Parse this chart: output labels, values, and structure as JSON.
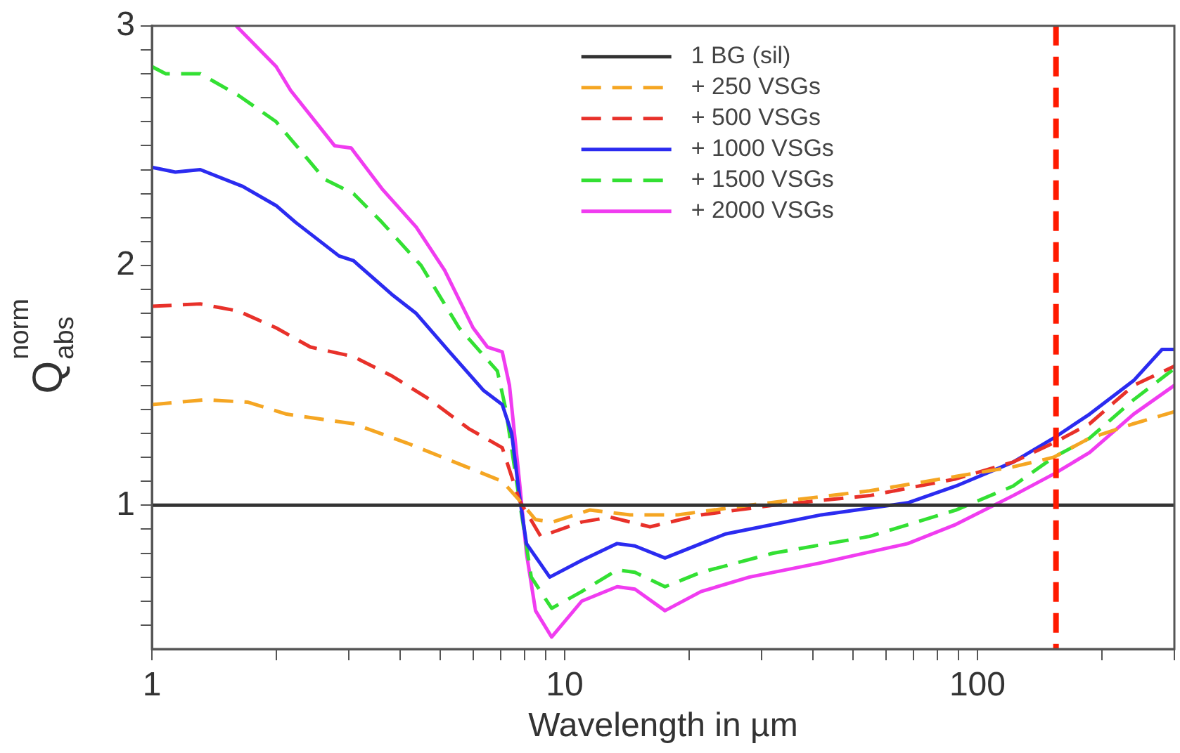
{
  "chart_data": {
    "type": "line",
    "xlabel": "Wavelength in µm",
    "ylabel": "Q$_{abs}$$^{norm}$",
    "log": "x",
    "xlim": [
      1,
      300
    ],
    "ylim": [
      0.4,
      3
    ],
    "xticks": [
      1,
      {
        "value": 2,
        "label": null
      },
      {
        "value": 3,
        "label": null
      },
      {
        "value": 4,
        "label": null
      },
      {
        "value": 5,
        "label": null
      },
      {
        "value": 6,
        "label": null
      },
      {
        "value": 7,
        "label": null
      },
      {
        "value": 8,
        "label": null
      },
      {
        "value": 9,
        "label": null
      },
      10,
      {
        "value": 20,
        "label": null
      },
      {
        "value": 30,
        "label": null
      },
      {
        "value": 40,
        "label": null
      },
      {
        "value": 50,
        "label": null
      },
      {
        "value": 60,
        "label": null
      },
      {
        "value": 70,
        "label": null
      },
      {
        "value": 80,
        "label": null
      },
      {
        "value": 90,
        "label": null
      },
      100,
      {
        "value": 200,
        "label": null
      },
      {
        "value": 300,
        "label": null
      }
    ],
    "yticks": [
      {
        "value": 0.5,
        "label": null
      },
      {
        "value": 0.6,
        "label": null
      },
      {
        "value": 0.7,
        "label": null
      },
      {
        "value": 0.8,
        "label": null
      },
      {
        "value": 0.9,
        "label": null
      },
      1,
      {
        "value": 1.1,
        "label": null
      },
      {
        "value": 1.2,
        "label": null
      },
      {
        "value": 1.3,
        "label": null
      },
      {
        "value": 1.4,
        "label": null
      },
      {
        "value": 1.5,
        "label": null
      },
      {
        "value": 1.6,
        "label": null
      },
      {
        "value": 1.7,
        "label": null
      },
      {
        "value": 1.8,
        "label": null
      },
      {
        "value": 1.9,
        "label": null
      },
      2,
      {
        "value": 2.1,
        "label": null
      },
      {
        "value": 2.2,
        "label": null
      },
      {
        "value": 2.3,
        "label": null
      },
      {
        "value": 2.4,
        "label": null
      },
      {
        "value": 2.5,
        "label": null
      },
      {
        "value": 2.6,
        "label": null
      },
      {
        "value": 2.7,
        "label": null
      },
      {
        "value": 2.8,
        "label": null
      },
      {
        "value": 2.9,
        "label": null
      },
      3
    ],
    "grid": false,
    "legend": "top",
    "marker": "none",
    "ref_lines": [
      {
        "axis": "x",
        "value": 155,
        "color": "#ff1a00",
        "line_style": "dashed"
      }
    ],
    "series": [
      {
        "name": "1 BG (sil)",
        "color": "#333333",
        "line_style": "solid",
        "x": [
          1,
          300
        ],
        "values": [
          1,
          1
        ]
      },
      {
        "name": "+ 250 VSGs",
        "color": "#f5a623",
        "line_style": "dashed",
        "x": [
          1,
          1.34,
          1.71,
          2.12,
          3.08,
          4.14,
          5.41,
          7.06,
          7.77,
          8.5,
          9.35,
          11.5,
          14.4,
          18.8,
          28,
          54.8,
          88.7,
          122,
          153,
          187,
          239,
          300
        ],
        "values": [
          1.42,
          1.44,
          1.43,
          1.38,
          1.34,
          1.26,
          1.18,
          1.1,
          1.02,
          0.94,
          0.93,
          0.98,
          0.96,
          0.96,
          1.0,
          1.06,
          1.12,
          1.16,
          1.2,
          1.28,
          1.34,
          1.39
        ]
      },
      {
        "name": "+ 500 VSGs",
        "color": "#e8312a",
        "line_style": "dashed",
        "x": [
          1,
          1.31,
          1.62,
          2.0,
          2.42,
          3.08,
          3.81,
          4.72,
          5.85,
          7.06,
          7.77,
          8.75,
          11,
          12.9,
          16.1,
          21.4,
          32,
          54.8,
          88.7,
          122,
          153,
          187,
          239,
          300
        ],
        "values": [
          1.83,
          1.84,
          1.81,
          1.74,
          1.66,
          1.62,
          1.54,
          1.44,
          1.32,
          1.24,
          1.02,
          0.87,
          0.93,
          0.95,
          0.91,
          0.96,
          1.0,
          1.04,
          1.11,
          1.18,
          1.26,
          1.34,
          1.5,
          1.58
        ]
      },
      {
        "name": "+ 1000 VSGs",
        "color": "#2b2bf0",
        "line_style": "solid",
        "x": [
          1,
          1.14,
          1.31,
          1.66,
          2.0,
          2.23,
          2.84,
          3.08,
          3.81,
          4.37,
          5.26,
          6.35,
          7.06,
          7.44,
          7.77,
          8.08,
          9.2,
          11,
          13.4,
          14.8,
          17.5,
          24.5,
          41.9,
          67.8,
          88.7,
          122,
          153,
          187,
          239,
          280,
          300
        ],
        "values": [
          2.41,
          2.39,
          2.4,
          2.33,
          2.25,
          2.18,
          2.04,
          2.02,
          1.88,
          1.8,
          1.64,
          1.48,
          1.42,
          1.3,
          1.04,
          0.84,
          0.7,
          0.77,
          0.84,
          0.83,
          0.78,
          0.88,
          0.96,
          1.01,
          1.08,
          1.18,
          1.28,
          1.38,
          1.52,
          1.65,
          1.65
        ]
      },
      {
        "name": "+ 1500 VSGs",
        "color": "#33e033",
        "line_style": "dashed",
        "x": [
          1,
          1.08,
          1.31,
          1.62,
          2.0,
          2.62,
          3.08,
          3.61,
          4.49,
          5.55,
          6.87,
          7.2,
          7.77,
          8.3,
          9.3,
          11,
          13.4,
          14.8,
          17.5,
          21.4,
          32,
          54.8,
          88.7,
          122,
          153,
          187,
          239,
          300
        ],
        "values": [
          2.83,
          2.8,
          2.8,
          2.71,
          2.6,
          2.36,
          2.3,
          2.18,
          2.0,
          1.74,
          1.56,
          1.4,
          1.02,
          0.7,
          0.57,
          0.64,
          0.73,
          0.72,
          0.66,
          0.72,
          0.8,
          0.87,
          0.98,
          1.08,
          1.2,
          1.28,
          1.44,
          1.57
        ]
      },
      {
        "name": "+ 2000 VSGs",
        "color": "#f03cf0",
        "line_style": "solid",
        "x": [
          1.6,
          2.0,
          2.17,
          2.77,
          3.04,
          3.61,
          4.37,
          5.12,
          6.0,
          6.5,
          7.06,
          7.35,
          7.77,
          8.08,
          8.5,
          9.3,
          11,
          13.4,
          14.8,
          17.5,
          21.4,
          28,
          41.9,
          67.8,
          88.7,
          122,
          153,
          187,
          239,
          300
        ],
        "values": [
          3.0,
          2.83,
          2.73,
          2.5,
          2.49,
          2.32,
          2.16,
          1.98,
          1.74,
          1.66,
          1.64,
          1.5,
          1.1,
          0.8,
          0.56,
          0.45,
          0.6,
          0.66,
          0.65,
          0.56,
          0.64,
          0.7,
          0.76,
          0.84,
          0.92,
          1.04,
          1.13,
          1.22,
          1.38,
          1.5
        ]
      }
    ]
  }
}
